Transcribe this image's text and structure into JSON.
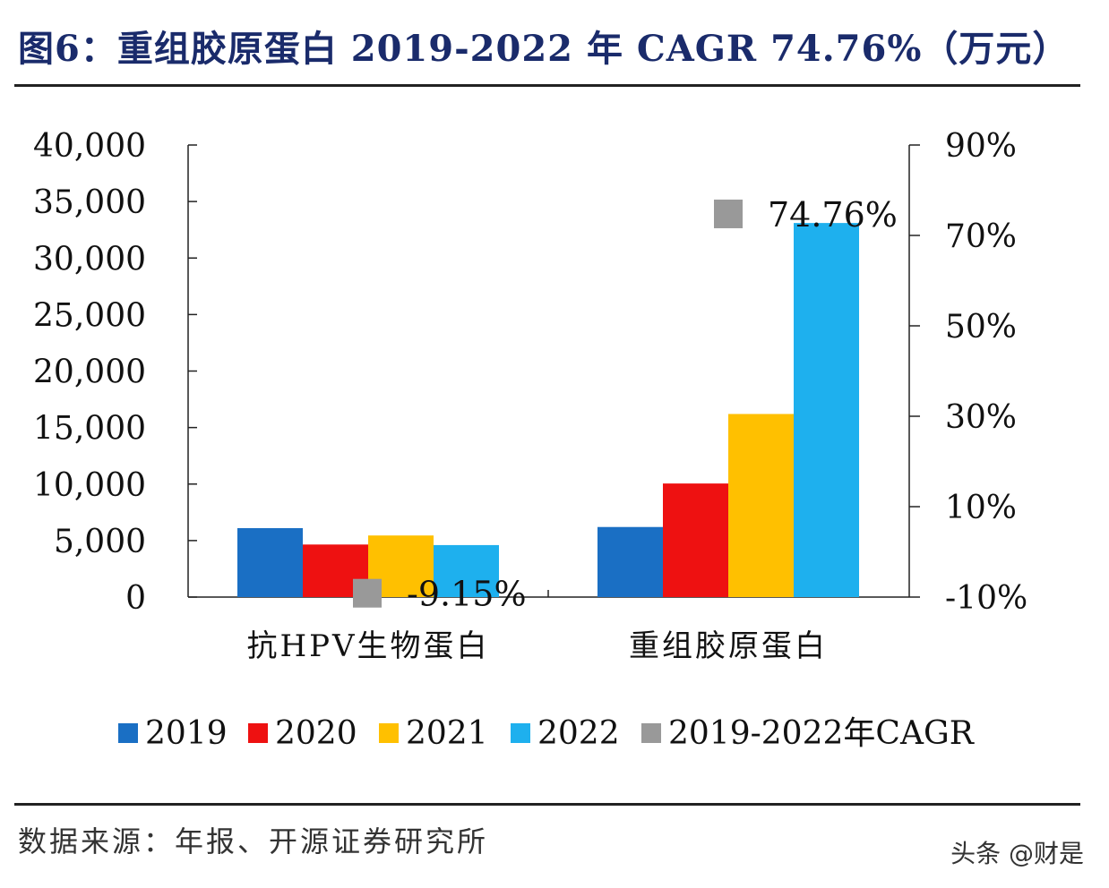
{
  "title": "图6：重组胶原蛋白 2019-2022 年 CAGR 74.76%（万元）",
  "source": "数据来源：年报、开源证券研究所",
  "watermark": "头条 @财是",
  "chart_data": {
    "type": "bar",
    "categories": [
      "抗HPV生物蛋白",
      "重组胶原蛋白"
    ],
    "series": [
      {
        "name": "2019",
        "color": "#1a6fc4",
        "values": [
          6100,
          6200
        ]
      },
      {
        "name": "2020",
        "color": "#ee1111",
        "values": [
          4650,
          10050
        ]
      },
      {
        "name": "2021",
        "color": "#ffc000",
        "values": [
          5450,
          16200
        ]
      },
      {
        "name": "2022",
        "color": "#1eb0ee",
        "values": [
          4600,
          33100
        ]
      }
    ],
    "secondary_series": {
      "name": "2019-2022年CAGR",
      "type": "scatter",
      "marker": "square",
      "color": "#999999",
      "values": [
        -9.15,
        74.76
      ],
      "labels": [
        "-9.15%",
        "74.76%"
      ]
    },
    "ylim": [
      0,
      40000
    ],
    "yticks": [
      "0",
      "5,000",
      "10,000",
      "15,000",
      "20,000",
      "25,000",
      "30,000",
      "35,000",
      "40,000"
    ],
    "y2lim": [
      -10,
      90
    ],
    "y2ticks": [
      "-10%",
      "10%",
      "30%",
      "50%",
      "70%",
      "90%"
    ],
    "legend_position": "bottom",
    "grid": false
  }
}
